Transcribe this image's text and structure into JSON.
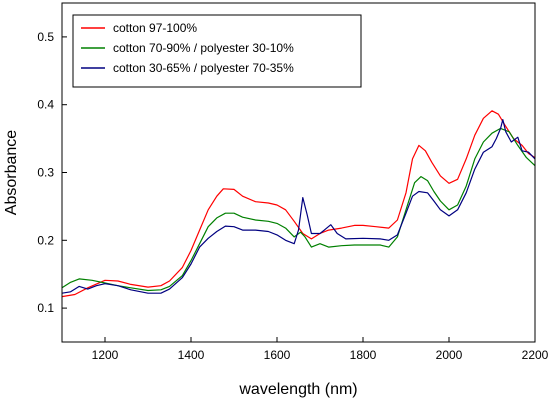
{
  "chart_data": {
    "type": "line",
    "xlabel": "wavelength (nm)",
    "ylabel": "Absorbance",
    "xlim": [
      1100,
      2200
    ],
    "ylim": [
      0.05,
      0.55
    ],
    "xticks": [
      1200,
      1400,
      1600,
      1800,
      2000,
      2200
    ],
    "yticks": [
      0.1,
      0.2,
      0.3,
      0.4,
      0.5
    ],
    "xtick_labels": [
      "1200",
      "1400",
      "1600",
      "1800",
      "2000",
      "2200"
    ],
    "ytick_labels": [
      "0.1",
      "0.2",
      "0.3",
      "0.4",
      "0.5"
    ],
    "grid": false,
    "legend_position": "top-left",
    "series": [
      {
        "name": "cotton 97-100%",
        "color": "#ff0000",
        "points": [
          [
            1100,
            0.117
          ],
          [
            1130,
            0.12
          ],
          [
            1160,
            0.13
          ],
          [
            1200,
            0.141
          ],
          [
            1230,
            0.14
          ],
          [
            1260,
            0.135
          ],
          [
            1300,
            0.131
          ],
          [
            1330,
            0.133
          ],
          [
            1350,
            0.14
          ],
          [
            1380,
            0.16
          ],
          [
            1400,
            0.185
          ],
          [
            1420,
            0.215
          ],
          [
            1440,
            0.245
          ],
          [
            1460,
            0.265
          ],
          [
            1475,
            0.276
          ],
          [
            1500,
            0.275
          ],
          [
            1520,
            0.265
          ],
          [
            1550,
            0.257
          ],
          [
            1580,
            0.255
          ],
          [
            1600,
            0.252
          ],
          [
            1620,
            0.245
          ],
          [
            1640,
            0.228
          ],
          [
            1660,
            0.21
          ],
          [
            1680,
            0.202
          ],
          [
            1700,
            0.21
          ],
          [
            1720,
            0.215
          ],
          [
            1750,
            0.218
          ],
          [
            1780,
            0.222
          ],
          [
            1800,
            0.222
          ],
          [
            1830,
            0.22
          ],
          [
            1860,
            0.218
          ],
          [
            1880,
            0.23
          ],
          [
            1900,
            0.27
          ],
          [
            1915,
            0.32
          ],
          [
            1930,
            0.34
          ],
          [
            1945,
            0.332
          ],
          [
            1960,
            0.315
          ],
          [
            1980,
            0.295
          ],
          [
            2000,
            0.284
          ],
          [
            2020,
            0.29
          ],
          [
            2040,
            0.32
          ],
          [
            2060,
            0.355
          ],
          [
            2080,
            0.38
          ],
          [
            2100,
            0.391
          ],
          [
            2115,
            0.386
          ],
          [
            2130,
            0.37
          ],
          [
            2150,
            0.35
          ],
          [
            2170,
            0.34
          ],
          [
            2185,
            0.328
          ],
          [
            2200,
            0.322
          ]
        ]
      },
      {
        "name": "cotton 70-90% / polyester 30-10%",
        "color": "#008000",
        "points": [
          [
            1100,
            0.13
          ],
          [
            1120,
            0.138
          ],
          [
            1140,
            0.143
          ],
          [
            1170,
            0.141
          ],
          [
            1200,
            0.137
          ],
          [
            1230,
            0.133
          ],
          [
            1260,
            0.13
          ],
          [
            1300,
            0.126
          ],
          [
            1330,
            0.127
          ],
          [
            1350,
            0.132
          ],
          [
            1380,
            0.148
          ],
          [
            1400,
            0.17
          ],
          [
            1420,
            0.195
          ],
          [
            1440,
            0.22
          ],
          [
            1460,
            0.233
          ],
          [
            1480,
            0.24
          ],
          [
            1500,
            0.24
          ],
          [
            1520,
            0.234
          ],
          [
            1550,
            0.23
          ],
          [
            1580,
            0.228
          ],
          [
            1600,
            0.225
          ],
          [
            1620,
            0.218
          ],
          [
            1640,
            0.205
          ],
          [
            1655,
            0.212
          ],
          [
            1665,
            0.205
          ],
          [
            1680,
            0.19
          ],
          [
            1700,
            0.195
          ],
          [
            1720,
            0.19
          ],
          [
            1750,
            0.192
          ],
          [
            1780,
            0.193
          ],
          [
            1800,
            0.193
          ],
          [
            1840,
            0.193
          ],
          [
            1860,
            0.19
          ],
          [
            1880,
            0.205
          ],
          [
            1900,
            0.245
          ],
          [
            1920,
            0.285
          ],
          [
            1935,
            0.294
          ],
          [
            1950,
            0.288
          ],
          [
            1965,
            0.272
          ],
          [
            1980,
            0.258
          ],
          [
            2000,
            0.245
          ],
          [
            2020,
            0.252
          ],
          [
            2040,
            0.28
          ],
          [
            2060,
            0.32
          ],
          [
            2080,
            0.345
          ],
          [
            2100,
            0.358
          ],
          [
            2120,
            0.365
          ],
          [
            2140,
            0.36
          ],
          [
            2160,
            0.34
          ],
          [
            2180,
            0.322
          ],
          [
            2200,
            0.31
          ]
        ]
      },
      {
        "name": "cotton 30-65% / polyester 70-35%",
        "color": "#000080",
        "points": [
          [
            1100,
            0.122
          ],
          [
            1120,
            0.124
          ],
          [
            1140,
            0.132
          ],
          [
            1160,
            0.128
          ],
          [
            1180,
            0.133
          ],
          [
            1200,
            0.136
          ],
          [
            1230,
            0.133
          ],
          [
            1260,
            0.127
          ],
          [
            1300,
            0.122
          ],
          [
            1330,
            0.122
          ],
          [
            1350,
            0.128
          ],
          [
            1380,
            0.145
          ],
          [
            1400,
            0.165
          ],
          [
            1420,
            0.19
          ],
          [
            1440,
            0.203
          ],
          [
            1460,
            0.213
          ],
          [
            1480,
            0.221
          ],
          [
            1500,
            0.22
          ],
          [
            1520,
            0.215
          ],
          [
            1550,
            0.215
          ],
          [
            1580,
            0.213
          ],
          [
            1600,
            0.208
          ],
          [
            1620,
            0.2
          ],
          [
            1640,
            0.195
          ],
          [
            1650,
            0.215
          ],
          [
            1660,
            0.263
          ],
          [
            1670,
            0.238
          ],
          [
            1680,
            0.21
          ],
          [
            1700,
            0.21
          ],
          [
            1710,
            0.215
          ],
          [
            1725,
            0.223
          ],
          [
            1740,
            0.21
          ],
          [
            1760,
            0.202
          ],
          [
            1800,
            0.203
          ],
          [
            1840,
            0.202
          ],
          [
            1860,
            0.2
          ],
          [
            1880,
            0.208
          ],
          [
            1900,
            0.24
          ],
          [
            1915,
            0.265
          ],
          [
            1930,
            0.272
          ],
          [
            1950,
            0.27
          ],
          [
            1965,
            0.258
          ],
          [
            1980,
            0.245
          ],
          [
            2000,
            0.236
          ],
          [
            2020,
            0.245
          ],
          [
            2040,
            0.27
          ],
          [
            2060,
            0.305
          ],
          [
            2080,
            0.33
          ],
          [
            2100,
            0.338
          ],
          [
            2110,
            0.35
          ],
          [
            2120,
            0.365
          ],
          [
            2125,
            0.378
          ],
          [
            2132,
            0.36
          ],
          [
            2145,
            0.345
          ],
          [
            2160,
            0.352
          ],
          [
            2170,
            0.332
          ],
          [
            2185,
            0.33
          ],
          [
            2200,
            0.32
          ]
        ]
      }
    ]
  }
}
